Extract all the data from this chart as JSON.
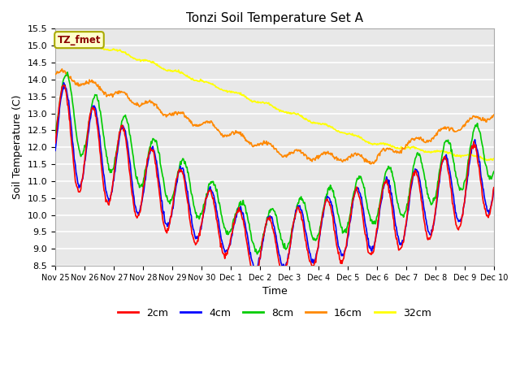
{
  "title": "Tonzi Soil Temperature Set A",
  "xlabel": "Time",
  "ylabel": "Soil Temperature (C)",
  "ylim": [
    8.5,
    15.5
  ],
  "yticks": [
    8.5,
    9.0,
    9.5,
    10.0,
    10.5,
    11.0,
    11.5,
    12.0,
    12.5,
    13.0,
    13.5,
    14.0,
    14.5,
    15.0,
    15.5
  ],
  "xtick_labels": [
    "Nov 25",
    "Nov 26",
    "Nov 27",
    "Nov 28",
    "Nov 29",
    "Nov 30",
    "Dec 1",
    "Dec 2",
    "Dec 3",
    "Dec 4",
    "Dec 5",
    "Dec 6",
    "Dec 7",
    "Dec 8",
    "Dec 9",
    "Dec 10"
  ],
  "colors": {
    "2cm": "#ff0000",
    "4cm": "#0000ff",
    "8cm": "#00cc00",
    "16cm": "#ff8800",
    "32cm": "#ffff00"
  },
  "legend_label": "TZ_fmet",
  "legend_text_color": "#8b0000",
  "legend_box_facecolor": "#ffffcc",
  "legend_box_edgecolor": "#aaaa00",
  "fig_facecolor": "#ffffff",
  "ax_facecolor": "#e8e8e8",
  "grid_color": "#ffffff",
  "n_days": 15,
  "samples_per_day": 48
}
